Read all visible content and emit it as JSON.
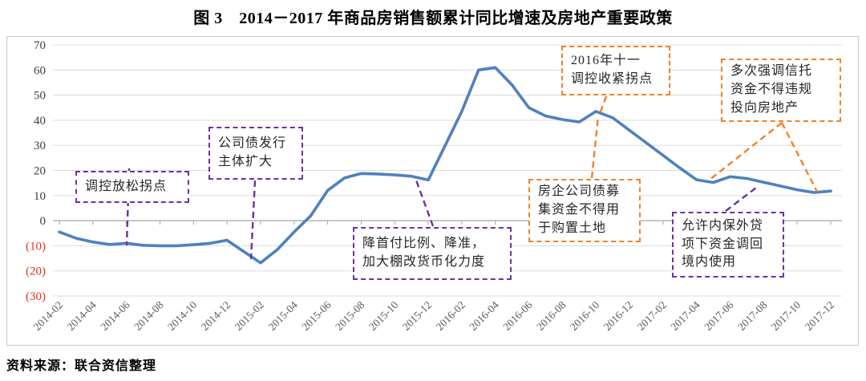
{
  "title": "图 3　2014－2017 年商品房销售额累计同比增速及房地产重要政策",
  "source": "资料来源：联合资信整理",
  "colors": {
    "line": "#4F81BD",
    "purple": "#7030A0",
    "orange": "#EF8228",
    "negative_tick": "#E0301E",
    "positive_tick": "#3f3f3f",
    "x_tick_text": "#595959",
    "grid": "#DCDCDC",
    "zero_axis": "#A6A6A6",
    "frame": "#C9C9C9"
  },
  "chart_data": {
    "type": "line",
    "title": "2014－2017 年商品房销售额累计同比增速及房地产重要政策",
    "ylabel": "",
    "xlabel": "",
    "ylim": [
      -30,
      70
    ],
    "ytick_step": 10,
    "yticks": [
      70,
      60,
      50,
      40,
      30,
      20,
      10,
      0,
      -10,
      -20,
      -30
    ],
    "ytick_display": [
      "70",
      "60",
      "50",
      "40",
      "30",
      "20",
      "10",
      "0",
      "(10)",
      "(20)",
      "(30)"
    ],
    "x_tick_labels": [
      "2014-02",
      "2014-04",
      "2014-06",
      "2014-08",
      "2014-10",
      "2014-12",
      "2015-02",
      "2015-04",
      "2015-06",
      "2015-08",
      "2015-10",
      "2015-12",
      "2016-02",
      "2016-04",
      "2016-06",
      "2016-08",
      "2016-10",
      "2016-12",
      "2017-02",
      "2017-04",
      "2017-06",
      "2017-08",
      "2017-10",
      "2017-12"
    ],
    "grid": "horizontal",
    "legend": "none",
    "series": [
      {
        "name": "商品房销售额累计同比增速(%)",
        "color": "#4F81BD",
        "points": [
          [
            "2014-02",
            -4.5
          ],
          [
            "2014-03",
            -7.0
          ],
          [
            "2014-04",
            -8.5
          ],
          [
            "2014-05",
            -9.5
          ],
          [
            "2014-06",
            -9.0
          ],
          [
            "2014-07",
            -9.8
          ],
          [
            "2014-08",
            -10.0
          ],
          [
            "2014-09",
            -10.0
          ],
          [
            "2014-10",
            -9.6
          ],
          [
            "2014-11",
            -9.0
          ],
          [
            "2014-12",
            -7.8
          ],
          [
            "2015-02",
            -16.8
          ],
          [
            "2015-03",
            -11.5
          ],
          [
            "2015-04",
            -4.5
          ],
          [
            "2015-05",
            2.0
          ],
          [
            "2015-06",
            12.0
          ],
          [
            "2015-07",
            17.0
          ],
          [
            "2015-08",
            18.8
          ],
          [
            "2015-09",
            18.6
          ],
          [
            "2015-10",
            18.2
          ],
          [
            "2015-11",
            17.7
          ],
          [
            "2015-12",
            16.2
          ],
          [
            "2016-02",
            43.5
          ],
          [
            "2016-03",
            60.0
          ],
          [
            "2016-04",
            61.0
          ],
          [
            "2016-05",
            54.0
          ],
          [
            "2016-06",
            45.0
          ],
          [
            "2016-07",
            41.7
          ],
          [
            "2016-08",
            40.3
          ],
          [
            "2016-09",
            39.3
          ],
          [
            "2016-10",
            43.5
          ],
          [
            "2016-11",
            41.0
          ],
          [
            "2016-12",
            36.0
          ],
          [
            "2017-02",
            26.0
          ],
          [
            "2017-03",
            21.0
          ],
          [
            "2017-04",
            16.3
          ],
          [
            "2017-05",
            15.2
          ],
          [
            "2017-06",
            17.5
          ],
          [
            "2017-07",
            16.8
          ],
          [
            "2017-08",
            15.3
          ],
          [
            "2017-09",
            13.8
          ],
          [
            "2017-10",
            12.3
          ],
          [
            "2017-11",
            11.2
          ],
          [
            "2017-12",
            11.8
          ]
        ]
      }
    ]
  },
  "annotations": [
    {
      "style": "purple",
      "lines": [
        "调控放松拐点",
        "",
        ""
      ]
    },
    {
      "style": "purple",
      "lines": [
        "公司债发行",
        "主体扩大",
        ""
      ]
    },
    {
      "style": "purple",
      "lines": [
        "降首付比例、降准，",
        "加大棚改货币化力度",
        ""
      ]
    },
    {
      "style": "orange",
      "lines": [
        "2016年十一",
        "调控收紧拐点",
        ""
      ]
    },
    {
      "style": "orange",
      "lines": [
        "房企公司债募",
        "集资金不得用",
        "于购置土地"
      ]
    },
    {
      "style": "orange",
      "lines": [
        "多次强调信托",
        "资金不得违规",
        "投向房地产"
      ]
    },
    {
      "style": "purple",
      "lines": [
        "允许内保外贷",
        "项下资金调回",
        "境内使用"
      ]
    }
  ]
}
